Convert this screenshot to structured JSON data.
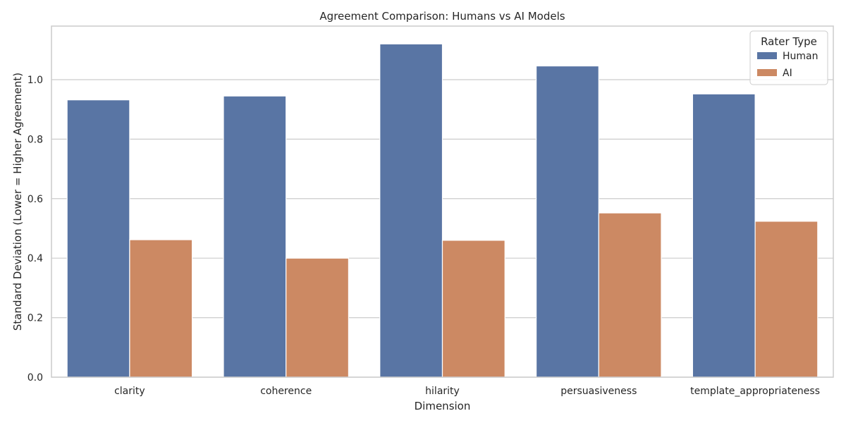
{
  "chart_data": {
    "type": "bar",
    "title": "Agreement Comparison: Humans vs AI Models",
    "xlabel": "Dimension",
    "ylabel": "Standard Deviation (Lower = Higher Agreement)",
    "categories": [
      "clarity",
      "coherence",
      "hilarity",
      "persuasiveness",
      "template_appropriateness"
    ],
    "series": [
      {
        "name": "Human",
        "color": "#5975a4",
        "values": [
          0.932,
          0.945,
          1.12,
          1.046,
          0.952
        ]
      },
      {
        "name": "AI",
        "color": "#cc8963",
        "values": [
          0.462,
          0.4,
          0.46,
          0.552,
          0.524
        ]
      }
    ],
    "ylim": [
      0,
      1.18
    ],
    "yticks": [
      0.0,
      0.2,
      0.4,
      0.6,
      0.8,
      1.0
    ],
    "ytick_labels": [
      "0.0",
      "0.2",
      "0.4",
      "0.6",
      "0.8",
      "1.0"
    ],
    "grid": true,
    "legend": {
      "title": "Rater Type",
      "placement": "top-right"
    },
    "colors": {
      "grid": "#cccccc",
      "spine": "#cccccc",
      "text": "#262626",
      "background": "#ffffff"
    }
  }
}
